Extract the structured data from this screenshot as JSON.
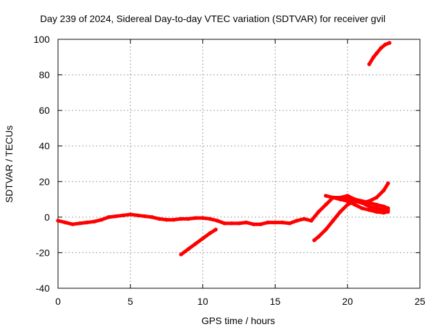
{
  "chart_data": {
    "type": "scatter",
    "title": "Day 239 of 2024, Sidereal Day-to-day VTEC variation (SDTVAR) for receiver gvil",
    "xlabel": "GPS time / hours",
    "ylabel": "SDTVAR / TECUs",
    "xlim": [
      0,
      25
    ],
    "ylim": [
      -40,
      100
    ],
    "xticks": [
      0,
      5,
      10,
      15,
      20,
      25
    ],
    "yticks": [
      -40,
      -20,
      0,
      20,
      40,
      60,
      80,
      100
    ],
    "grid": true,
    "legend": "none",
    "series_color": "#ff0000",
    "series": [
      {
        "x": [
          0,
          0.5,
          1,
          1.5,
          2,
          2.5,
          3,
          3.5,
          4,
          4.5,
          5,
          5.5,
          6,
          6.5,
          7,
          7.5,
          8,
          8.5,
          9,
          9.5,
          10,
          10.5,
          11,
          11.5,
          12,
          12.5,
          13,
          13.5,
          14,
          14.5,
          15,
          15.5,
          16,
          16.5,
          17,
          17.5,
          18,
          18.5,
          19,
          19.5,
          20,
          20.5,
          21,
          21.5,
          22,
          22.5,
          22.8
        ],
        "values": [
          -2,
          -3,
          -4,
          -3.5,
          -3,
          -2.5,
          -1.5,
          0,
          0.5,
          1,
          1.5,
          1,
          0.5,
          0,
          -1,
          -1.5,
          -1.5,
          -1,
          -1,
          -0.5,
          -0.5,
          -1,
          -2,
          -3.5,
          -3.5,
          -3.5,
          -3,
          -4,
          -4,
          -3,
          -3,
          -3,
          -3.5,
          -2,
          -1,
          -2,
          3,
          7,
          11,
          11,
          12,
          10,
          9,
          8,
          7,
          6,
          5
        ]
      },
      {
        "x": [
          8.5,
          9,
          9.5,
          10,
          10.5,
          10.9
        ],
        "values": [
          -21,
          -18,
          -15,
          -12,
          -9,
          -7
        ]
      },
      {
        "x": [
          17.7,
          18,
          18.5,
          19,
          19.5,
          20,
          20.5,
          21,
          21.5,
          22,
          22.5,
          22.8
        ],
        "values": [
          -13,
          -11,
          -7,
          -2,
          3,
          7,
          9,
          8,
          6,
          5,
          4,
          4
        ]
      },
      {
        "x": [
          19.5,
          20,
          20.5,
          21,
          21.5,
          22,
          22.5,
          22.8
        ],
        "values": [
          10,
          9,
          7,
          5,
          4,
          3,
          2.5,
          3
        ]
      },
      {
        "x": [
          18.5,
          19,
          19.5,
          20,
          20.5,
          21,
          21.5,
          22,
          22.5,
          22.8
        ],
        "values": [
          12,
          11,
          10,
          10,
          9,
          8,
          9,
          11,
          15,
          19
        ]
      },
      {
        "x": [
          21.5,
          21.8,
          22,
          22.3,
          22.6,
          22.9
        ],
        "values": [
          86,
          90,
          92,
          95,
          97,
          98
        ]
      }
    ]
  }
}
